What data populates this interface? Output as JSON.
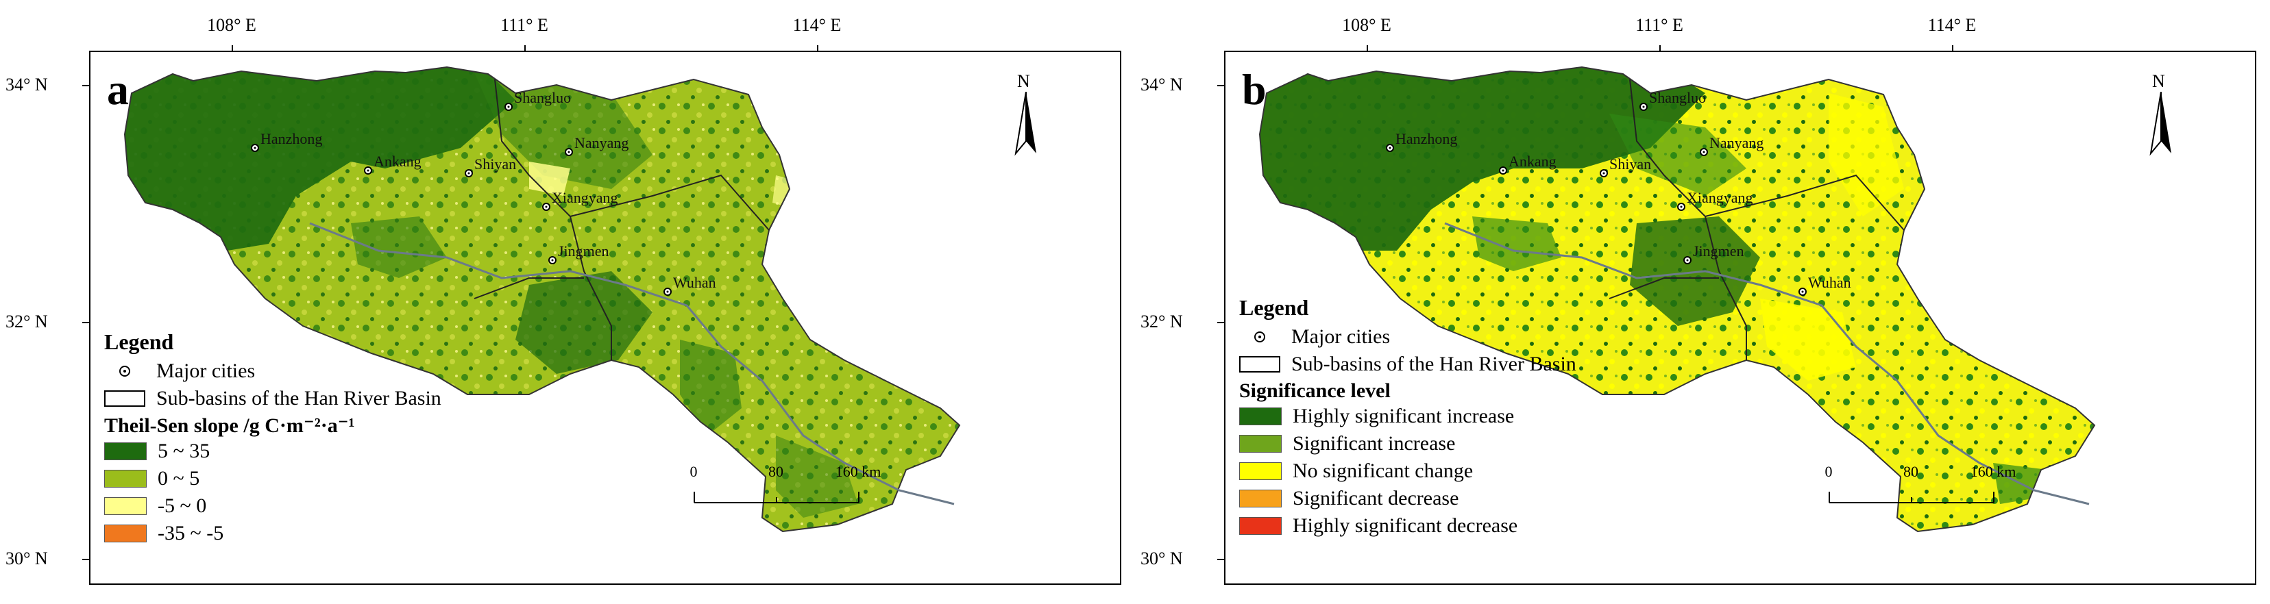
{
  "axes": {
    "x_ticks": [
      "108° E",
      "111° E",
      "114° E"
    ],
    "y_ticks": [
      "34° N",
      "32° N",
      "30° N"
    ]
  },
  "cities": [
    "Shangluo",
    "Hanzhong",
    "Ankang",
    "Shiyan",
    "Nanyang",
    "Xiangyang",
    "Jingmen",
    "Wuhan"
  ],
  "north_arrow": "N",
  "scale_bar": {
    "labels": [
      "0",
      "80",
      "160 km"
    ]
  },
  "panel_a": {
    "label": "a",
    "legend_title": "Legend",
    "cities_label": "Major cities",
    "basin_label": "Sub-basins of the Han River Basin",
    "class_title": "Theil-Sen slope /g C·m⁻²·a⁻¹",
    "classes": [
      {
        "label": "5 ~ 35",
        "color": "#1e6b0f"
      },
      {
        "label": "0 ~ 5",
        "color": "#9bbd1b"
      },
      {
        "label": "-5 ~ 0",
        "color": "#ffff8c"
      },
      {
        "label": "-35 ~ -5",
        "color": "#f0781e"
      }
    ]
  },
  "panel_b": {
    "label": "b",
    "legend_title": "Legend",
    "cities_label": "Major cities",
    "basin_label": "Sub-basins of the Han River Basin",
    "class_title": "Significance level",
    "classes": [
      {
        "label": "Highly significant increase",
        "color": "#1e6b0f"
      },
      {
        "label": "Significant increase",
        "color": "#6fa51c"
      },
      {
        "label": "No significant change",
        "color": "#ffff00"
      },
      {
        "label": "Significant decrease",
        "color": "#f7a11a"
      },
      {
        "label": "Highly significant decrease",
        "color": "#e83318"
      }
    ]
  }
}
